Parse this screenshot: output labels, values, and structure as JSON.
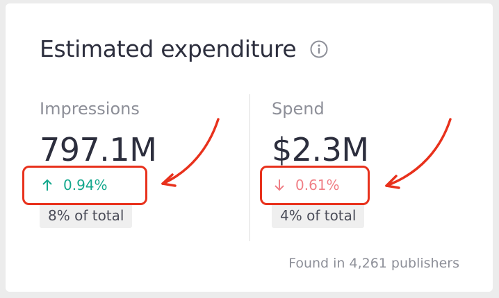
{
  "card": {
    "title": "Estimated expenditure",
    "info_icon": "info-circle-icon"
  },
  "impressions": {
    "label": "Impressions",
    "value": "797.1M",
    "change": "0.94%",
    "change_direction": "up",
    "change_icon": "arrow-up-icon",
    "share": "8% of total"
  },
  "spend": {
    "label": "Spend",
    "value": "$2.3M",
    "change": "0.61%",
    "change_direction": "down",
    "change_icon": "arrow-down-icon",
    "share": "4% of total"
  },
  "footer": {
    "note": "Found in 4,261 publishers"
  },
  "colors": {
    "positive": "#14a88d",
    "negative": "#f07f86",
    "annotation": "#e8311c"
  }
}
